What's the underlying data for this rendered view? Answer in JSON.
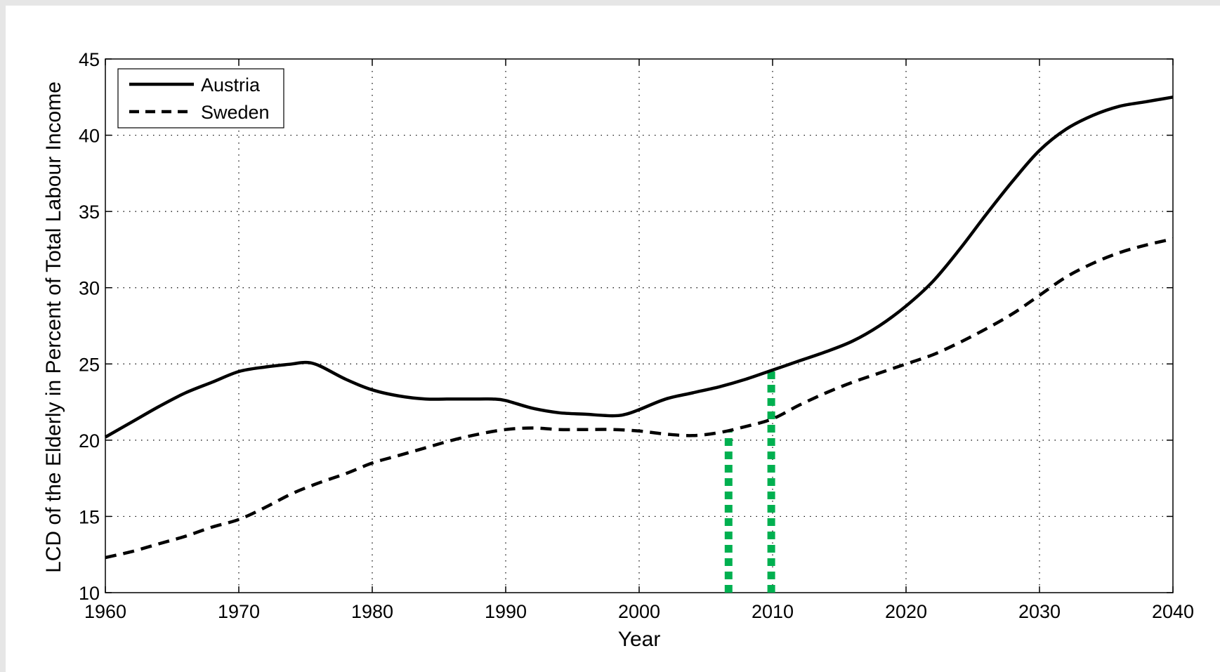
{
  "chart_data": {
    "type": "line",
    "title": "",
    "xlabel": "Year",
    "ylabel": "LCD of the Elderly in Percent of Total Labour Income",
    "xlim": [
      1960,
      2040
    ],
    "ylim": [
      10,
      45
    ],
    "xticks": [
      1960,
      1970,
      1980,
      1990,
      2000,
      2010,
      2020,
      2030,
      2040
    ],
    "yticks": [
      10,
      15,
      20,
      25,
      30,
      35,
      40,
      45
    ],
    "grid": true,
    "legend_position": "top-left",
    "series": [
      {
        "name": "Austria",
        "style": "solid",
        "color": "#000000",
        "x": [
          1960,
          1962,
          1964,
          1966,
          1968,
          1970,
          1972,
          1974,
          1975,
          1976,
          1978,
          1980,
          1982,
          1984,
          1986,
          1988,
          1989,
          1990,
          1992,
          1994,
          1996,
          1998,
          1999,
          2000,
          2002,
          2004,
          2006,
          2008,
          2010,
          2012,
          2014,
          2016,
          2018,
          2020,
          2022,
          2024,
          2026,
          2028,
          2030,
          2032,
          2034,
          2036,
          2038,
          2040
        ],
        "y": [
          20.2,
          21.2,
          22.2,
          23.1,
          23.8,
          24.5,
          24.8,
          25.0,
          25.1,
          24.9,
          24.0,
          23.3,
          22.9,
          22.7,
          22.7,
          22.7,
          22.7,
          22.6,
          22.1,
          21.8,
          21.7,
          21.6,
          21.7,
          22.0,
          22.7,
          23.1,
          23.5,
          24.0,
          24.6,
          25.2,
          25.8,
          26.5,
          27.5,
          28.8,
          30.4,
          32.5,
          34.8,
          37.0,
          39.0,
          40.4,
          41.3,
          41.9,
          42.2,
          42.5
        ]
      },
      {
        "name": "Sweden",
        "style": "dashed",
        "color": "#000000",
        "x": [
          1960,
          1962,
          1964,
          1966,
          1968,
          1970,
          1972,
          1974,
          1976,
          1978,
          1980,
          1982,
          1984,
          1986,
          1988,
          1990,
          1992,
          1994,
          1996,
          1998,
          2000,
          2002,
          2004,
          2006,
          2008,
          2010,
          2012,
          2014,
          2016,
          2018,
          2020,
          2022,
          2024,
          2026,
          2028,
          2030,
          2032,
          2034,
          2036,
          2038,
          2040
        ],
        "y": [
          12.3,
          12.7,
          13.2,
          13.7,
          14.3,
          14.8,
          15.6,
          16.5,
          17.2,
          17.8,
          18.5,
          19.0,
          19.5,
          20.0,
          20.4,
          20.7,
          20.8,
          20.7,
          20.7,
          20.7,
          20.6,
          20.4,
          20.3,
          20.5,
          20.9,
          21.4,
          22.3,
          23.1,
          23.8,
          24.4,
          25.0,
          25.6,
          26.4,
          27.3,
          28.3,
          29.5,
          30.7,
          31.6,
          32.3,
          32.8,
          33.2
        ]
      }
    ],
    "markers": [
      {
        "x": 2006.7,
        "y_from": 10,
        "y_to": 20.6,
        "color": "#00b050",
        "style": "dotted"
      },
      {
        "x": 2009.9,
        "y_from": 10,
        "y_to": 24.8,
        "color": "#00b050",
        "style": "dotted"
      }
    ]
  }
}
